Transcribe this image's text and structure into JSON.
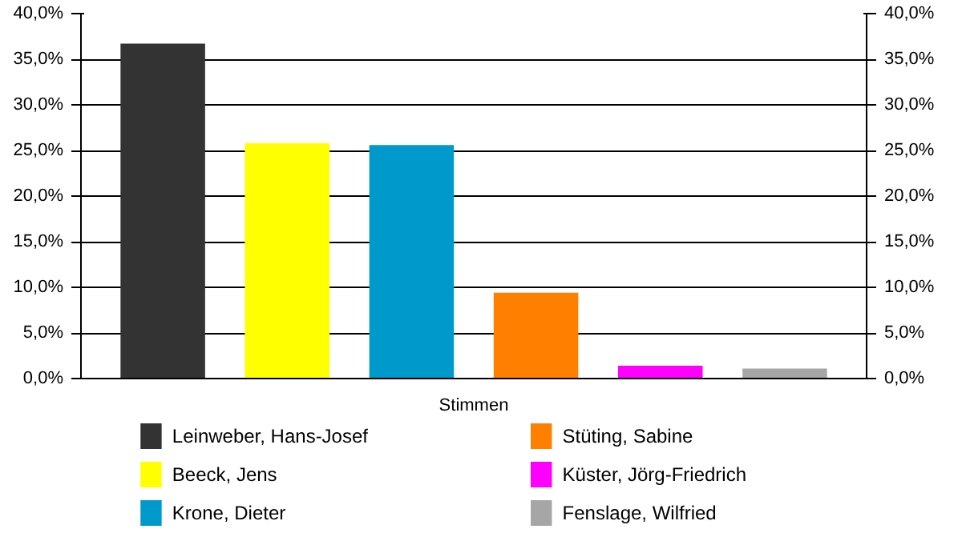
{
  "chart_data": {
    "type": "bar",
    "categories": [
      "Stimmen"
    ],
    "series": [
      {
        "name": "Leinweber, Hans-Josef",
        "color": "#333333",
        "values": [
          36.7
        ]
      },
      {
        "name": "Beeck, Jens",
        "color": "#ffff00",
        "values": [
          25.8
        ]
      },
      {
        "name": "Krone, Dieter",
        "color": "#0099cc",
        "values": [
          25.6
        ]
      },
      {
        "name": "Stüting, Sabine",
        "color": "#ff8000",
        "values": [
          9.4
        ]
      },
      {
        "name": "Küster, Jörg-Friedrich",
        "color": "#ff00ff",
        "values": [
          1.4
        ]
      },
      {
        "name": "Fenslage, Wilfried",
        "color": "#a6a6a6",
        "values": [
          1.1
        ]
      }
    ],
    "ylim": [
      0,
      40
    ],
    "yticks": [
      {
        "value": 0,
        "label": "0,0%"
      },
      {
        "value": 5,
        "label": "5,0%"
      },
      {
        "value": 10,
        "label": "10,0%"
      },
      {
        "value": 15,
        "label": "15,0%"
      },
      {
        "value": 20,
        "label": "20,0%"
      },
      {
        "value": 25,
        "label": "25,0%"
      },
      {
        "value": 30,
        "label": "30,0%"
      },
      {
        "value": 35,
        "label": "35,0%"
      },
      {
        "value": 40,
        "label": "40,0%"
      }
    ],
    "grid": "y",
    "legend": "bottom"
  }
}
